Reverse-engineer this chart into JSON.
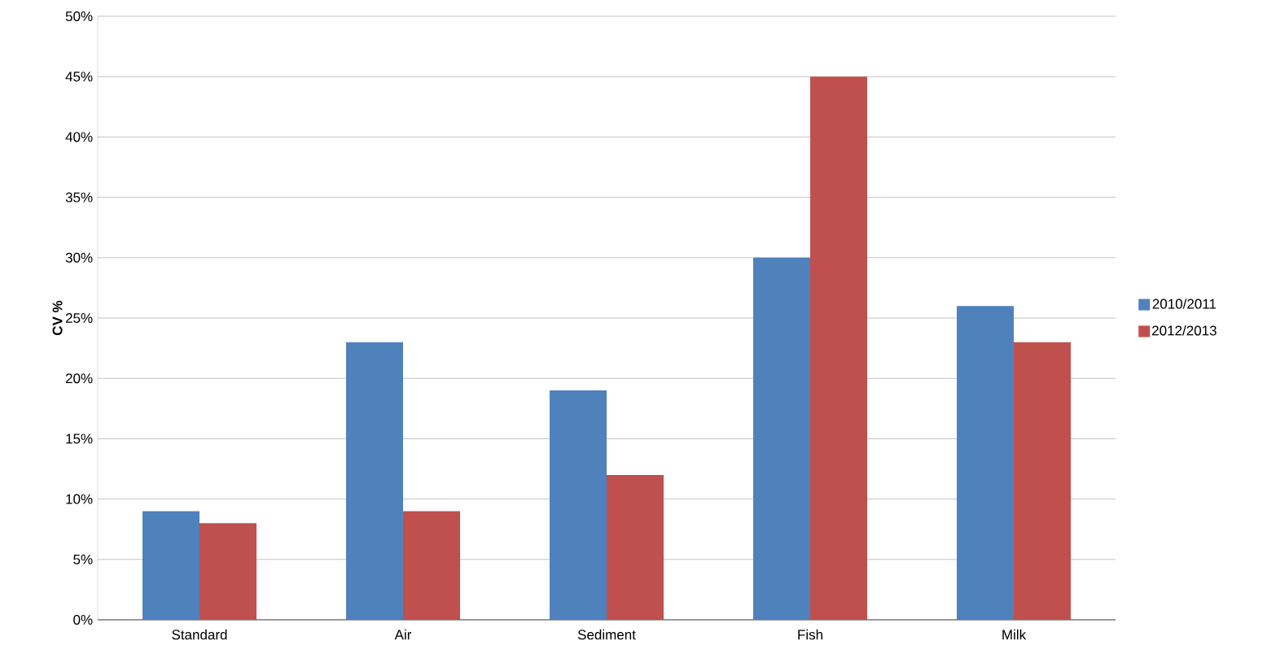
{
  "chart_data": {
    "type": "bar",
    "ylabel": "CV %",
    "categories": [
      "Standard",
      "Air",
      "Sediment",
      "Fish",
      "Milk"
    ],
    "series": [
      {
        "name": "2010/2011",
        "color": "#4f81bd",
        "values": [
          9,
          23,
          19,
          30,
          26
        ]
      },
      {
        "name": "2012/2013",
        "color": "#c0504d",
        "values": [
          8,
          9,
          12,
          45,
          23
        ]
      }
    ],
    "ylim": [
      0,
      50
    ],
    "yticks": [
      {
        "value": 0,
        "label": "0%"
      },
      {
        "value": 5,
        "label": "5%"
      },
      {
        "value": 10,
        "label": "10%"
      },
      {
        "value": 15,
        "label": "15%"
      },
      {
        "value": 20,
        "label": "20%"
      },
      {
        "value": 25,
        "label": "25%"
      },
      {
        "value": 30,
        "label": "30%"
      },
      {
        "value": 35,
        "label": "35%"
      },
      {
        "value": 40,
        "label": "40%"
      },
      {
        "value": 45,
        "label": "45%"
      },
      {
        "value": 50,
        "label": "50%"
      }
    ],
    "grid": "y",
    "legend": "right"
  }
}
